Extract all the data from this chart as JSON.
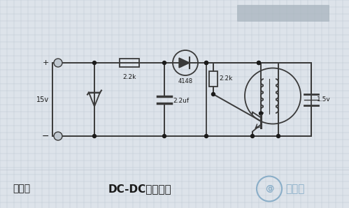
{
  "bg_color": "#dde3ea",
  "grid_color": "#bfc8d2",
  "line_color": "#3a3a3a",
  "text_color": "#1a1a1a",
  "title": "DC-DC升压电路",
  "subtitle_left": "示例图",
  "logo_text": "日月辰",
  "node_color": "#1a1a1a",
  "component_color": "#3a3a3a",
  "watermark_color": "#8aaec8"
}
